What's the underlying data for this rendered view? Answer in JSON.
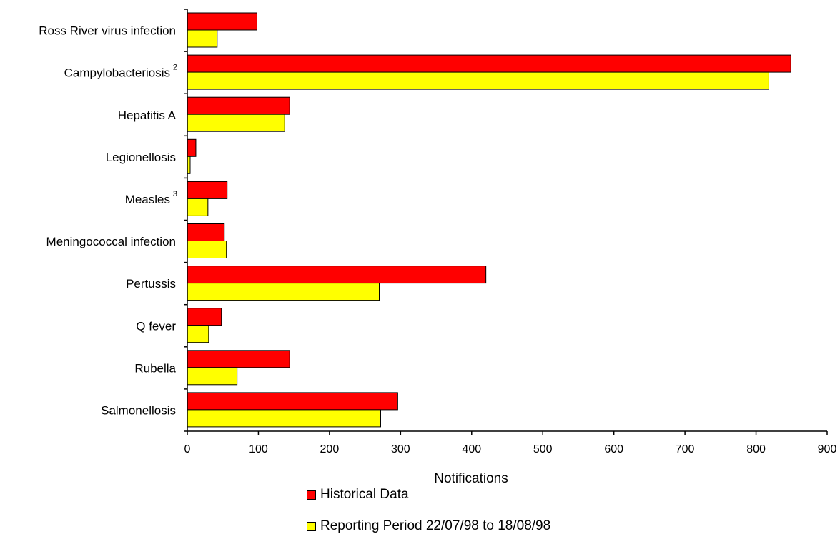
{
  "chart_data": {
    "type": "bar",
    "orientation": "horizontal",
    "categories": [
      {
        "label": "Ross River virus infection",
        "sup": ""
      },
      {
        "label": "Campylobacteriosis",
        "sup": "2"
      },
      {
        "label": "Hepatitis A",
        "sup": ""
      },
      {
        "label": "Legionellosis",
        "sup": ""
      },
      {
        "label": "Measles",
        "sup": "3"
      },
      {
        "label": "Meningococcal infection",
        "sup": ""
      },
      {
        "label": "Pertussis",
        "sup": ""
      },
      {
        "label": "Q fever",
        "sup": ""
      },
      {
        "label": "Rubella",
        "sup": ""
      },
      {
        "label": "Salmonellosis",
        "sup": ""
      }
    ],
    "series": [
      {
        "name": "Historical Data",
        "color": "#ff0000",
        "values": [
          98,
          849,
          144,
          12,
          56,
          52,
          420,
          48,
          144,
          296
        ]
      },
      {
        "name": "Reporting Period 22/07/98 to 18/08/98",
        "color": "#ffff00",
        "values": [
          42,
          818,
          137,
          4,
          29,
          55,
          270,
          30,
          70,
          272
        ]
      }
    ],
    "xlabel": "Notifications",
    "xlim": [
      0,
      900
    ],
    "xticks": [
      0,
      100,
      200,
      300,
      400,
      500,
      600,
      700,
      800,
      900
    ],
    "grid": false,
    "legend_position": "bottom"
  }
}
